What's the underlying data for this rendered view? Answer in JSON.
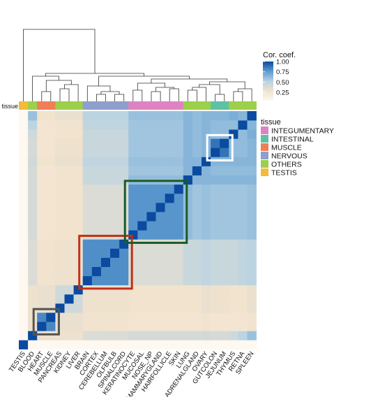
{
  "chart_data": {
    "type": "heatmap",
    "title": "",
    "annotation_label": "tissue",
    "labels": [
      "TESTIS",
      "BLOOD",
      "HEART",
      "MUSCLE",
      "PANCREAS",
      "KIDNEY",
      "LIVER",
      "BRAIN",
      "CORTEX",
      "CEREBELLUM",
      "OLFBULB",
      "SPINALCORD",
      "KERATINOCYTE",
      "MUCOSAL",
      "NOSE_NP",
      "MAMMARYGLAND",
      "HAIRFOLLICLE",
      "SKIN",
      "LUNG",
      "ADRENALGLAND",
      "OVARY",
      "GUTCOLON",
      "JEJUNUM",
      "THYMUS",
      "RETNA",
      "SPLEEN"
    ],
    "tissue_groups": [
      "TESTIS",
      "OTHERS",
      "MUSCLE",
      "MUSCLE",
      "OTHERS",
      "OTHERS",
      "OTHERS",
      "NERVOUS",
      "NERVOUS",
      "NERVOUS",
      "NERVOUS",
      "NERVOUS",
      "INTEGUMENTARY",
      "INTEGUMENTARY",
      "INTEGUMENTARY",
      "INTEGUMENTARY",
      "INTEGUMENTARY",
      "INTEGUMENTARY",
      "OTHERS",
      "OTHERS",
      "OTHERS",
      "INTESTINAL",
      "INTESTINAL",
      "OTHERS",
      "OTHERS",
      "OTHERS"
    ],
    "color_scale": {
      "title": "Cor. coef.",
      "ticks": [
        1.0,
        0.75,
        0.5,
        0.25
      ],
      "tick_labels": [
        "1.00",
        "0.75",
        "0.50",
        "0.25"
      ],
      "range": [
        0.05,
        1.0
      ],
      "colors": [
        "#fdf8f0",
        "#f1e2cc",
        "#b5d2e4",
        "#5d9bd0",
        "#0a4ba0"
      ]
    },
    "tissue_legend": {
      "title": "tissue",
      "entries": [
        {
          "name": "INTEGUMENTARY",
          "color": "#df82c4"
        },
        {
          "name": "INTESTINAL",
          "color": "#5fc1a4"
        },
        {
          "name": "MUSCLE",
          "color": "#f07f58"
        },
        {
          "name": "NERVOUS",
          "color": "#8e9fcd"
        },
        {
          "name": "OTHERS",
          "color": "#9ccf4a"
        },
        {
          "name": "TESTIS",
          "color": "#f3bb3a"
        }
      ]
    },
    "highlight_boxes": [
      {
        "name": "muscle",
        "from": "HEART",
        "to": "MUSCLE",
        "color": "#555555"
      },
      {
        "name": "nervous",
        "from": "BRAIN",
        "to": "SPINALCORD",
        "color": "#c03018"
      },
      {
        "name": "integumentary",
        "from": "KERATINOCYTE",
        "to": "SKIN",
        "color": "#1a5c22"
      },
      {
        "name": "intestinal",
        "from": "GUTCOLON",
        "to": "JEJUNUM",
        "color": "#ffffff"
      }
    ],
    "values": [
      [
        1.0,
        0.05,
        0.05,
        0.05,
        0.05,
        0.05,
        0.05,
        0.05,
        0.05,
        0.05,
        0.05,
        0.05,
        0.05,
        0.05,
        0.05,
        0.05,
        0.05,
        0.05,
        0.05,
        0.05,
        0.05,
        0.05,
        0.05,
        0.05,
        0.05,
        0.05
      ],
      [
        0.05,
        1.0,
        0.3,
        0.3,
        0.3,
        0.3,
        0.3,
        0.38,
        0.38,
        0.38,
        0.38,
        0.38,
        0.4,
        0.4,
        0.4,
        0.4,
        0.4,
        0.4,
        0.4,
        0.4,
        0.42,
        0.4,
        0.4,
        0.42,
        0.5,
        0.6
      ],
      [
        0.05,
        0.3,
        1.0,
        0.82,
        0.32,
        0.32,
        0.32,
        0.28,
        0.28,
        0.28,
        0.28,
        0.28,
        0.25,
        0.25,
        0.25,
        0.25,
        0.25,
        0.25,
        0.25,
        0.25,
        0.28,
        0.25,
        0.25,
        0.25,
        0.25,
        0.28
      ],
      [
        0.05,
        0.3,
        0.82,
        1.0,
        0.32,
        0.32,
        0.32,
        0.28,
        0.28,
        0.28,
        0.28,
        0.28,
        0.25,
        0.25,
        0.25,
        0.25,
        0.25,
        0.25,
        0.25,
        0.25,
        0.28,
        0.25,
        0.25,
        0.25,
        0.25,
        0.28
      ],
      [
        0.05,
        0.3,
        0.32,
        0.32,
        1.0,
        0.42,
        0.42,
        0.3,
        0.3,
        0.3,
        0.3,
        0.3,
        0.28,
        0.28,
        0.28,
        0.28,
        0.28,
        0.28,
        0.28,
        0.28,
        0.32,
        0.3,
        0.3,
        0.28,
        0.28,
        0.32
      ],
      [
        0.05,
        0.3,
        0.32,
        0.32,
        0.42,
        1.0,
        0.42,
        0.3,
        0.3,
        0.3,
        0.3,
        0.3,
        0.28,
        0.28,
        0.28,
        0.28,
        0.28,
        0.28,
        0.28,
        0.28,
        0.32,
        0.3,
        0.3,
        0.28,
        0.28,
        0.32
      ],
      [
        0.05,
        0.3,
        0.32,
        0.32,
        0.42,
        0.42,
        1.0,
        0.3,
        0.3,
        0.3,
        0.3,
        0.3,
        0.28,
        0.28,
        0.28,
        0.28,
        0.28,
        0.28,
        0.28,
        0.28,
        0.32,
        0.3,
        0.3,
        0.28,
        0.28,
        0.32
      ],
      [
        0.05,
        0.38,
        0.28,
        0.28,
        0.3,
        0.3,
        0.3,
        1.0,
        0.8,
        0.8,
        0.8,
        0.8,
        0.38,
        0.38,
        0.38,
        0.38,
        0.38,
        0.38,
        0.45,
        0.45,
        0.48,
        0.45,
        0.45,
        0.45,
        0.48,
        0.5
      ],
      [
        0.05,
        0.38,
        0.28,
        0.28,
        0.3,
        0.3,
        0.3,
        0.8,
        1.0,
        0.8,
        0.8,
        0.8,
        0.38,
        0.38,
        0.38,
        0.38,
        0.38,
        0.38,
        0.45,
        0.45,
        0.48,
        0.45,
        0.45,
        0.45,
        0.48,
        0.5
      ],
      [
        0.05,
        0.38,
        0.28,
        0.28,
        0.3,
        0.3,
        0.3,
        0.8,
        0.8,
        1.0,
        0.8,
        0.8,
        0.38,
        0.38,
        0.38,
        0.38,
        0.38,
        0.38,
        0.45,
        0.45,
        0.48,
        0.45,
        0.45,
        0.45,
        0.48,
        0.5
      ],
      [
        0.05,
        0.38,
        0.28,
        0.28,
        0.3,
        0.3,
        0.3,
        0.8,
        0.8,
        0.8,
        1.0,
        0.8,
        0.38,
        0.38,
        0.38,
        0.38,
        0.38,
        0.38,
        0.45,
        0.45,
        0.48,
        0.45,
        0.45,
        0.45,
        0.48,
        0.5
      ],
      [
        0.05,
        0.38,
        0.28,
        0.28,
        0.3,
        0.3,
        0.3,
        0.8,
        0.8,
        0.8,
        0.8,
        1.0,
        0.38,
        0.38,
        0.38,
        0.38,
        0.38,
        0.38,
        0.45,
        0.45,
        0.48,
        0.45,
        0.45,
        0.45,
        0.48,
        0.5
      ],
      [
        0.05,
        0.4,
        0.25,
        0.25,
        0.28,
        0.28,
        0.28,
        0.38,
        0.38,
        0.38,
        0.38,
        0.38,
        1.0,
        0.78,
        0.78,
        0.78,
        0.78,
        0.78,
        0.62,
        0.58,
        0.6,
        0.58,
        0.58,
        0.58,
        0.58,
        0.6
      ],
      [
        0.05,
        0.4,
        0.25,
        0.25,
        0.28,
        0.28,
        0.28,
        0.38,
        0.38,
        0.38,
        0.38,
        0.38,
        0.78,
        1.0,
        0.78,
        0.78,
        0.78,
        0.78,
        0.62,
        0.58,
        0.6,
        0.58,
        0.58,
        0.58,
        0.58,
        0.6
      ],
      [
        0.05,
        0.4,
        0.25,
        0.25,
        0.28,
        0.28,
        0.28,
        0.38,
        0.38,
        0.38,
        0.38,
        0.38,
        0.78,
        0.78,
        1.0,
        0.78,
        0.78,
        0.78,
        0.62,
        0.58,
        0.6,
        0.58,
        0.58,
        0.58,
        0.58,
        0.6
      ],
      [
        0.05,
        0.4,
        0.25,
        0.25,
        0.28,
        0.28,
        0.28,
        0.38,
        0.38,
        0.38,
        0.38,
        0.38,
        0.78,
        0.78,
        0.78,
        1.0,
        0.78,
        0.78,
        0.62,
        0.58,
        0.6,
        0.58,
        0.58,
        0.58,
        0.58,
        0.6
      ],
      [
        0.05,
        0.4,
        0.25,
        0.25,
        0.28,
        0.28,
        0.28,
        0.38,
        0.38,
        0.38,
        0.38,
        0.38,
        0.78,
        0.78,
        0.78,
        0.78,
        1.0,
        0.78,
        0.62,
        0.58,
        0.6,
        0.58,
        0.58,
        0.58,
        0.58,
        0.6
      ],
      [
        0.05,
        0.4,
        0.25,
        0.25,
        0.28,
        0.28,
        0.28,
        0.38,
        0.38,
        0.38,
        0.38,
        0.38,
        0.78,
        0.78,
        0.78,
        0.78,
        0.78,
        1.0,
        0.62,
        0.58,
        0.6,
        0.58,
        0.58,
        0.58,
        0.58,
        0.6
      ],
      [
        0.05,
        0.4,
        0.25,
        0.25,
        0.28,
        0.28,
        0.28,
        0.45,
        0.45,
        0.45,
        0.45,
        0.45,
        0.62,
        0.62,
        0.62,
        0.62,
        0.62,
        0.62,
        1.0,
        0.65,
        0.65,
        0.65,
        0.65,
        0.65,
        0.65,
        0.65
      ],
      [
        0.05,
        0.4,
        0.25,
        0.25,
        0.28,
        0.28,
        0.28,
        0.45,
        0.45,
        0.45,
        0.45,
        0.45,
        0.58,
        0.58,
        0.58,
        0.58,
        0.58,
        0.58,
        0.65,
        1.0,
        0.65,
        0.62,
        0.62,
        0.62,
        0.62,
        0.62
      ],
      [
        0.05,
        0.42,
        0.28,
        0.28,
        0.32,
        0.32,
        0.32,
        0.48,
        0.48,
        0.48,
        0.48,
        0.48,
        0.6,
        0.6,
        0.6,
        0.6,
        0.6,
        0.6,
        0.65,
        0.65,
        1.0,
        0.65,
        0.65,
        0.65,
        0.65,
        0.65
      ],
      [
        0.05,
        0.4,
        0.25,
        0.25,
        0.3,
        0.3,
        0.3,
        0.45,
        0.45,
        0.45,
        0.45,
        0.45,
        0.58,
        0.58,
        0.58,
        0.58,
        0.58,
        0.58,
        0.65,
        0.62,
        0.65,
        1.0,
        0.88,
        0.62,
        0.62,
        0.65
      ],
      [
        0.05,
        0.4,
        0.25,
        0.25,
        0.3,
        0.3,
        0.3,
        0.45,
        0.45,
        0.45,
        0.45,
        0.45,
        0.58,
        0.58,
        0.58,
        0.58,
        0.58,
        0.58,
        0.65,
        0.62,
        0.65,
        0.88,
        1.0,
        0.62,
        0.62,
        0.65
      ],
      [
        0.05,
        0.42,
        0.25,
        0.25,
        0.28,
        0.28,
        0.28,
        0.45,
        0.45,
        0.45,
        0.45,
        0.45,
        0.58,
        0.58,
        0.58,
        0.58,
        0.58,
        0.58,
        0.65,
        0.62,
        0.65,
        0.62,
        0.62,
        1.0,
        0.62,
        0.68
      ],
      [
        0.05,
        0.5,
        0.25,
        0.25,
        0.28,
        0.28,
        0.28,
        0.48,
        0.48,
        0.48,
        0.48,
        0.48,
        0.58,
        0.58,
        0.58,
        0.58,
        0.58,
        0.58,
        0.65,
        0.62,
        0.65,
        0.62,
        0.62,
        0.62,
        1.0,
        0.65
      ],
      [
        0.05,
        0.6,
        0.28,
        0.28,
        0.32,
        0.32,
        0.32,
        0.5,
        0.5,
        0.5,
        0.5,
        0.5,
        0.6,
        0.6,
        0.6,
        0.6,
        0.6,
        0.6,
        0.65,
        0.62,
        0.65,
        0.65,
        0.65,
        0.68,
        0.65,
        1.0
      ]
    ]
  }
}
